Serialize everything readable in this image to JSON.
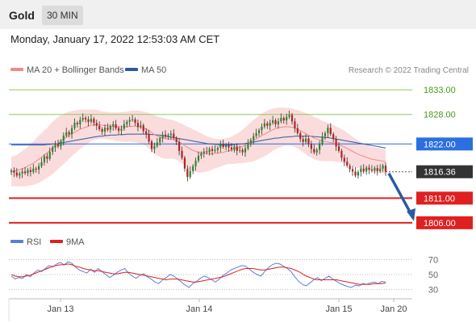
{
  "header": {
    "asset": "Gold",
    "timeframe": "30 MIN"
  },
  "timestamp": "Monday, January 17, 2022 12:53:03 AM CET",
  "legend": {
    "bb_label": "MA 20 + Bollinger Bands",
    "bb_color": "#f08a8a",
    "ma50_label": "MA 50",
    "ma50_color": "#2d5a9e",
    "credit": "Research © 2022 Trading Central"
  },
  "rsi_legend": {
    "rsi_label": "RSI",
    "rsi_color": "#5b7fd8",
    "ma_label": "9MA",
    "ma_color": "#e02020"
  },
  "chart_data": [
    {
      "type": "candlestick",
      "y_ticks": [
        1806,
        1811,
        1816.36,
        1822,
        1828,
        1833
      ],
      "ylim": [
        1804.5,
        1835.5
      ],
      "x_tick_labels": [
        "Jan 13",
        "Jan 14",
        "Jan 15",
        "Jan 20"
      ],
      "levels": [
        {
          "value": 1833.0,
          "label": "1833.00",
          "color": "#8fca5a",
          "text_color": "#4a9a1a",
          "kind": "resistance"
        },
        {
          "value": 1828.0,
          "label": "1828.00",
          "color": "#8fca5a",
          "text_color": "#4a9a1a",
          "kind": "resistance"
        },
        {
          "value": 1822.0,
          "label": "1822.00",
          "color": "#2b6fe0",
          "text_color": "#ffffff",
          "kind": "pivot"
        },
        {
          "value": 1816.36,
          "label": "1816.36",
          "color": "#333333",
          "text_color": "#ffffff",
          "kind": "last"
        },
        {
          "value": 1811.0,
          "label": "1811.00",
          "color": "#e02020",
          "text_color": "#ffffff",
          "kind": "support"
        },
        {
          "value": 1806.0,
          "label": "1806.00",
          "color": "#e02020",
          "text_color": "#ffffff",
          "kind": "support"
        }
      ],
      "candle_up_color": "#2a8a2a",
      "candle_down_color": "#b22222",
      "band_color": "#f9d0d0",
      "forecast_from": 1816.36,
      "forecast_to": 1806.0,
      "forecast_color": "#2c5aa0",
      "closes": [
        1816.6,
        1816.2,
        1815.6,
        1816.0,
        1816.4,
        1816.1,
        1816.7,
        1816.3,
        1817.0,
        1816.8,
        1817.5,
        1818.3,
        1819.5,
        1819.0,
        1820.4,
        1821.3,
        1822.0,
        1821.5,
        1822.6,
        1823.7,
        1824.4,
        1824.0,
        1825.2,
        1826.3,
        1826.0,
        1826.9,
        1827.3,
        1827.0,
        1826.5,
        1827.1,
        1826.3,
        1825.7,
        1825.0,
        1824.5,
        1825.3,
        1824.9,
        1825.6,
        1826.0,
        1825.2,
        1824.7,
        1825.1,
        1826.0,
        1826.5,
        1826.9,
        1827.0,
        1826.3,
        1825.5,
        1825.8,
        1824.6,
        1824.0,
        1822.5,
        1821.0,
        1821.6,
        1822.3,
        1823.2,
        1823.9,
        1823.5,
        1823.8,
        1824.1,
        1823.2,
        1822.4,
        1820.6,
        1819.2,
        1817.0,
        1815.3,
        1816.5,
        1817.5,
        1818.6,
        1819.6,
        1820.1,
        1820.5,
        1820.3,
        1821.0,
        1820.6,
        1820.8,
        1821.2,
        1822.0,
        1821.4,
        1821.8,
        1821.3,
        1820.9,
        1821.5,
        1820.6,
        1820.8,
        1820.3,
        1821.1,
        1822.1,
        1822.8,
        1823.6,
        1824.2,
        1824.8,
        1825.5,
        1826.2,
        1825.7,
        1826.3,
        1826.8,
        1826.0,
        1826.6,
        1827.3,
        1826.8,
        1827.5,
        1827.9,
        1826.6,
        1825.2,
        1824.2,
        1823.0,
        1822.4,
        1823.1,
        1822.0,
        1821.0,
        1820.3,
        1820.8,
        1822.0,
        1823.5,
        1824.2,
        1825.3,
        1824.0,
        1823.0,
        1821.5,
        1820.6,
        1819.2,
        1818.4,
        1817.6,
        1816.9,
        1816.4,
        1815.6,
        1816.3,
        1817.0,
        1816.4,
        1817.2,
        1816.8,
        1816.6,
        1817.1,
        1816.5,
        1817.0,
        1817.6,
        1816.4
      ],
      "ma20": [
        1816.4,
        1816.5,
        1816.6,
        1816.8,
        1817.0,
        1817.2,
        1817.5,
        1817.8,
        1818.1,
        1818.5,
        1818.9,
        1819.3,
        1819.8,
        1820.2,
        1820.7,
        1821.2,
        1821.7,
        1822.2,
        1822.6,
        1823.0,
        1823.4,
        1823.8,
        1824.1,
        1824.4,
        1824.7,
        1825.0,
        1825.2,
        1825.4,
        1825.6,
        1825.8,
        1825.9,
        1825.9,
        1825.9,
        1825.8,
        1825.8,
        1825.7,
        1825.6,
        1825.6,
        1825.5,
        1825.5,
        1825.5,
        1825.5,
        1825.5,
        1825.6,
        1825.6,
        1825.6,
        1825.5,
        1825.4,
        1825.2,
        1825.0,
        1824.7,
        1824.3,
        1823.9,
        1823.6,
        1823.4,
        1823.2,
        1823.1,
        1823.0,
        1823.0,
        1822.9,
        1822.7,
        1822.4,
        1822.1,
        1821.7,
        1821.3,
        1821.0,
        1820.7,
        1820.5,
        1820.3,
        1820.2,
        1820.1,
        1820.0,
        1820.0,
        1820.0,
        1820.1,
        1820.1,
        1820.2,
        1820.3,
        1820.5,
        1820.6,
        1820.7,
        1820.9,
        1821.1,
        1821.3,
        1821.5,
        1821.8,
        1822.1,
        1822.4,
        1822.7,
        1823.0,
        1823.4,
        1823.7,
        1824.0,
        1824.3,
        1824.6,
        1824.9,
        1825.1,
        1825.3,
        1825.4,
        1825.5,
        1825.5,
        1825.5,
        1825.4,
        1825.2,
        1825.0,
        1824.7,
        1824.4,
        1824.1,
        1823.8,
        1823.5,
        1823.2,
        1823.0,
        1822.8,
        1822.6,
        1822.5,
        1822.4,
        1822.3,
        1822.2,
        1822.0,
        1821.8,
        1821.6,
        1821.4,
        1821.1,
        1820.8,
        1820.5,
        1820.2,
        1819.9,
        1819.7,
        1819.5,
        1819.3,
        1819.1,
        1818.9,
        1818.8,
        1818.7,
        1818.6,
        1818.5,
        1818.4
      ],
      "bb_width": [
        3.0,
        3.1,
        3.2,
        3.4,
        3.6,
        3.8,
        4.0,
        4.2,
        4.4,
        4.6,
        4.8,
        4.9,
        5.0,
        5.1,
        5.2,
        5.3,
        5.3,
        5.3,
        5.2,
        5.1,
        5.0,
        4.8,
        4.6,
        4.4,
        4.2,
        4.0,
        3.8,
        3.6,
        3.4,
        3.2,
        3.1,
        3.0,
        2.9,
        2.8,
        2.8,
        2.8,
        2.8,
        2.8,
        2.9,
        2.9,
        3.0,
        3.0,
        3.1,
        3.1,
        3.2,
        3.2,
        3.3,
        3.3,
        3.4,
        3.5,
        3.6,
        3.8,
        3.9,
        4.0,
        4.1,
        4.1,
        4.1,
        4.0,
        4.0,
        3.9,
        3.9,
        3.9,
        4.0,
        4.1,
        4.2,
        4.3,
        4.3,
        4.2,
        4.1,
        4.0,
        3.8,
        3.6,
        3.4,
        3.2,
        3.0,
        2.9,
        2.8,
        2.7,
        2.7,
        2.7,
        2.8,
        2.9,
        3.0,
        3.2,
        3.4,
        3.6,
        3.8,
        4.0,
        4.2,
        4.3,
        4.4,
        4.5,
        4.5,
        4.5,
        4.4,
        4.3,
        4.2,
        4.1,
        4.0,
        3.9,
        3.8,
        3.8,
        3.8,
        3.8,
        3.9,
        4.0,
        4.1,
        4.2,
        4.3,
        4.3,
        4.3,
        4.3,
        4.2,
        4.1,
        4.0,
        3.9,
        3.8,
        3.7,
        3.6,
        3.5,
        3.4,
        3.3,
        3.2,
        3.1,
        3.0,
        2.9,
        2.8,
        2.7,
        2.6,
        2.6,
        2.5,
        2.5,
        2.5,
        2.5,
        2.5,
        2.5,
        2.5
      ],
      "ma50": [
        1821.8,
        1821.8,
        1821.8,
        1821.8,
        1821.8,
        1821.8,
        1821.8,
        1821.8,
        1821.8,
        1821.8,
        1821.8,
        1821.8,
        1821.8,
        1821.9,
        1821.9,
        1822.0,
        1822.0,
        1822.1,
        1822.2,
        1822.3,
        1822.4,
        1822.5,
        1822.6,
        1822.7,
        1822.8,
        1822.9,
        1823.0,
        1823.1,
        1823.2,
        1823.3,
        1823.4,
        1823.5,
        1823.6,
        1823.6,
        1823.7,
        1823.7,
        1823.8,
        1823.8,
        1823.8,
        1823.9,
        1823.9,
        1823.9,
        1824.0,
        1824.0,
        1824.0,
        1824.0,
        1824.0,
        1824.0,
        1824.0,
        1824.0,
        1824.0,
        1823.9,
        1823.9,
        1823.8,
        1823.8,
        1823.7,
        1823.6,
        1823.5,
        1823.4,
        1823.3,
        1823.2,
        1823.1,
        1823.0,
        1822.9,
        1822.8,
        1822.7,
        1822.6,
        1822.5,
        1822.4,
        1822.3,
        1822.2,
        1822.1,
        1822.0,
        1822.0,
        1821.9,
        1821.9,
        1821.8,
        1821.8,
        1821.8,
        1821.8,
        1821.8,
        1821.9,
        1821.9,
        1822.0,
        1822.0,
        1822.1,
        1822.2,
        1822.3,
        1822.4,
        1822.5,
        1822.6,
        1822.7,
        1822.8,
        1822.9,
        1823.0,
        1823.1,
        1823.2,
        1823.2,
        1823.3,
        1823.4,
        1823.4,
        1823.5,
        1823.5,
        1823.6,
        1823.6,
        1823.6,
        1823.6,
        1823.6,
        1823.6,
        1823.6,
        1823.5,
        1823.5,
        1823.4,
        1823.4,
        1823.3,
        1823.3,
        1823.2,
        1823.1,
        1823.0,
        1822.9,
        1822.8,
        1822.7,
        1822.6,
        1822.5,
        1822.4,
        1822.3,
        1822.2,
        1822.1,
        1822.0,
        1821.9,
        1821.8,
        1821.7,
        1821.6,
        1821.5,
        1821.4,
        1821.3,
        1821.2
      ]
    },
    {
      "type": "line",
      "name": "RSI",
      "y_ticks": [
        30,
        50,
        70
      ],
      "ylim": [
        20,
        80
      ],
      "rsi": [
        48,
        44,
        46,
        45,
        50,
        47,
        52,
        56,
        54,
        58,
        62,
        60,
        64,
        66,
        63,
        67,
        65,
        60,
        56,
        54,
        52,
        57,
        53,
        58,
        54,
        50,
        46,
        49,
        53,
        56,
        58,
        52,
        48,
        45,
        49,
        51,
        47,
        44,
        40,
        38,
        43,
        46,
        50,
        48,
        44,
        40,
        36,
        33,
        38,
        41,
        45,
        48,
        46,
        43,
        40,
        44,
        49,
        52,
        56,
        58,
        60,
        62,
        61,
        57,
        53,
        50,
        48,
        54,
        59,
        63,
        65,
        64,
        61,
        58,
        54,
        47,
        41,
        37,
        35,
        39,
        43,
        46,
        42,
        45,
        48,
        44,
        41,
        38,
        36,
        34,
        33,
        36,
        35,
        38,
        37,
        39,
        40,
        38,
        41,
        40
      ],
      "ma9": [
        50,
        48,
        47,
        47,
        48,
        49,
        51,
        53,
        55,
        57,
        59,
        61,
        62,
        63,
        63,
        64,
        63,
        61,
        60,
        58,
        57,
        56,
        55,
        55,
        54,
        53,
        52,
        51,
        51,
        52,
        53,
        53,
        52,
        51,
        50,
        49,
        48,
        47,
        46,
        45,
        44,
        43,
        44,
        44,
        44,
        43,
        42,
        41,
        40,
        40,
        41,
        42,
        43,
        44,
        45,
        46,
        47,
        49,
        51,
        53,
        55,
        57,
        58,
        58,
        58,
        57,
        56,
        56,
        57,
        58,
        59,
        60,
        60,
        59,
        58,
        56,
        54,
        51,
        48,
        46,
        44,
        43,
        43,
        43,
        43,
        43,
        43,
        42,
        41,
        40,
        39,
        38,
        37,
        37,
        37,
        37,
        38,
        38,
        38,
        39
      ]
    }
  ]
}
